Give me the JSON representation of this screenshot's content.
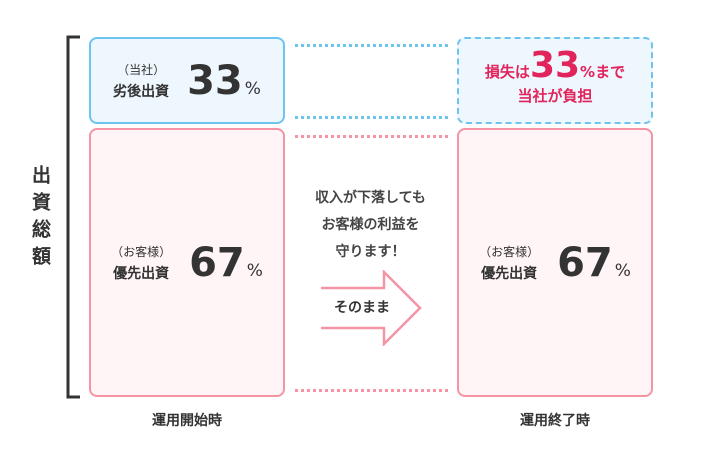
{
  "side_label": "出資総額",
  "start": {
    "caption": "運用開始時",
    "subordinated": {
      "sub": "（当社）",
      "label": "劣後出資",
      "value": "33",
      "unit": "%"
    },
    "priority": {
      "sub": "（お客様）",
      "label": "優先出資",
      "value": "67",
      "unit": "%"
    }
  },
  "middle": {
    "lines": [
      "収入が下落しても",
      "お客様の利益を",
      "守ります！"
    ],
    "arrow_label": "そのまま"
  },
  "end": {
    "caption": "運用終了時",
    "loss": {
      "pre": "損失は",
      "value": "33",
      "post": "%まで",
      "line2": "当社が負担"
    },
    "priority": {
      "sub": "（お客様）",
      "label": "優先出資",
      "value": "67",
      "unit": "%"
    }
  },
  "colors": {
    "blue": "#6cc4f0",
    "pink": "#f594a4",
    "red": "#e2245c"
  }
}
